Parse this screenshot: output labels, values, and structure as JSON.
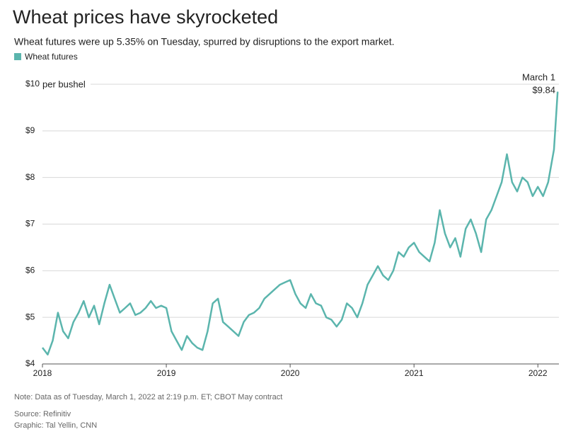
{
  "chart_data": {
    "type": "line",
    "title": "Wheat prices have skyrocketed",
    "subtitle": "Wheat futures were up 5.35% on Tuesday, spurred by disruptions to the export market.",
    "y_unit": "per bushel",
    "series": [
      {
        "name": "Wheat futures",
        "color": "#5bb5ad",
        "x": [
          2018.0,
          2018.042,
          2018.083,
          2018.125,
          2018.167,
          2018.208,
          2018.25,
          2018.292,
          2018.333,
          2018.375,
          2018.417,
          2018.458,
          2018.5,
          2018.542,
          2018.583,
          2018.625,
          2018.667,
          2018.708,
          2018.75,
          2018.792,
          2018.833,
          2018.875,
          2018.917,
          2018.958,
          2019.0,
          2019.042,
          2019.083,
          2019.125,
          2019.167,
          2019.208,
          2019.25,
          2019.292,
          2019.333,
          2019.375,
          2019.417,
          2019.458,
          2019.5,
          2019.542,
          2019.583,
          2019.625,
          2019.667,
          2019.708,
          2019.75,
          2019.792,
          2019.833,
          2019.875,
          2019.917,
          2019.958,
          2020.0,
          2020.042,
          2020.083,
          2020.125,
          2020.167,
          2020.208,
          2020.25,
          2020.292,
          2020.333,
          2020.375,
          2020.417,
          2020.458,
          2020.5,
          2020.542,
          2020.583,
          2020.625,
          2020.667,
          2020.708,
          2020.75,
          2020.792,
          2020.833,
          2020.875,
          2020.917,
          2020.958,
          2021.0,
          2021.042,
          2021.083,
          2021.125,
          2021.167,
          2021.208,
          2021.25,
          2021.292,
          2021.333,
          2021.375,
          2021.417,
          2021.458,
          2021.5,
          2021.542,
          2021.583,
          2021.625,
          2021.667,
          2021.708,
          2021.75,
          2021.792,
          2021.833,
          2021.875,
          2021.917,
          2021.958,
          2022.0,
          2022.042,
          2022.083,
          2022.13,
          2022.16
        ],
        "values": [
          4.35,
          4.2,
          4.5,
          5.1,
          4.7,
          4.55,
          4.9,
          5.1,
          5.35,
          5.0,
          5.25,
          4.85,
          5.3,
          5.7,
          5.4,
          5.1,
          5.2,
          5.3,
          5.05,
          5.1,
          5.2,
          5.35,
          5.2,
          5.25,
          5.2,
          4.7,
          4.5,
          4.3,
          4.6,
          4.45,
          4.35,
          4.3,
          4.7,
          5.3,
          5.4,
          4.9,
          4.8,
          4.7,
          4.6,
          4.9,
          5.05,
          5.1,
          5.2,
          5.4,
          5.5,
          5.6,
          5.7,
          5.75,
          5.8,
          5.5,
          5.3,
          5.2,
          5.5,
          5.3,
          5.25,
          5.0,
          4.95,
          4.8,
          4.95,
          5.3,
          5.2,
          5.0,
          5.3,
          5.7,
          5.9,
          6.1,
          5.9,
          5.8,
          6.0,
          6.4,
          6.3,
          6.5,
          6.6,
          6.4,
          6.3,
          6.2,
          6.6,
          7.3,
          6.8,
          6.5,
          6.7,
          6.3,
          6.9,
          7.1,
          6.8,
          6.4,
          7.1,
          7.3,
          7.6,
          7.9,
          8.5,
          7.9,
          7.7,
          8.0,
          7.9,
          7.6,
          7.8,
          7.6,
          7.9,
          8.6,
          9.84
        ]
      }
    ],
    "annotation": {
      "text": "March 1",
      "value": 9.84,
      "value_label": "$9.84"
    },
    "xlim": [
      2018,
      2022.17
    ],
    "xticks": [
      2018,
      2019,
      2020,
      2021,
      2022
    ],
    "ylim": [
      4,
      10
    ],
    "yticks": [
      {
        "value": 4,
        "label": "$4"
      },
      {
        "value": 5,
        "label": "$5"
      },
      {
        "value": 6,
        "label": "$6"
      },
      {
        "value": 7,
        "label": "$7"
      },
      {
        "value": 8,
        "label": "$8"
      },
      {
        "value": 9,
        "label": "$9"
      },
      {
        "value": 10,
        "label": "$10"
      }
    ],
    "grid": true,
    "note": "Note: Data as of Tuesday, March 1, 2022 at 2:19 p.m. ET; CBOT May contract",
    "source": "Source: Refinitiv",
    "credit": "Graphic: Tal Yellin, CNN"
  }
}
